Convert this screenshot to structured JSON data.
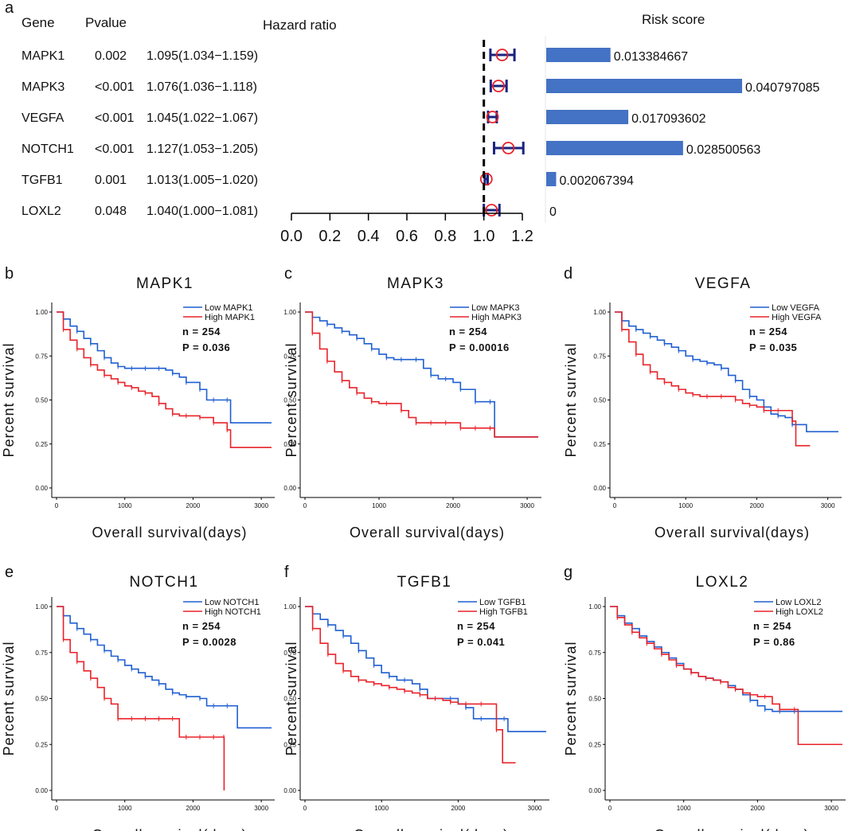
{
  "forest": {
    "panel_letter": "a",
    "headers": {
      "gene": "Gene",
      "pvalue": "Pvalue",
      "hazard": "Hazard ratio",
      "risk": "Risk score"
    },
    "rows": [
      {
        "gene": "MAPK1",
        "pvalue": "0.002",
        "hr_text": "1.095(1.034−1.159)",
        "hr": 1.095,
        "lo": 1.034,
        "hi": 1.159,
        "risk": 0.013384667,
        "risk_text": "0.013384667"
      },
      {
        "gene": "MAPK3",
        "pvalue": "<0.001",
        "hr_text": "1.076(1.036−1.118)",
        "hr": 1.076,
        "lo": 1.036,
        "hi": 1.118,
        "risk": 0.040797085,
        "risk_text": "0.040797085"
      },
      {
        "gene": "VEGFA",
        "pvalue": "<0.001",
        "hr_text": "1.045(1.022−1.067)",
        "hr": 1.045,
        "lo": 1.022,
        "hi": 1.067,
        "risk": 0.017093602,
        "risk_text": "0.017093602"
      },
      {
        "gene": "NOTCH1",
        "pvalue": "<0.001",
        "hr_text": "1.127(1.053−1.205)",
        "hr": 1.127,
        "lo": 1.053,
        "hi": 1.205,
        "risk": 0.028500563,
        "risk_text": "0.028500563"
      },
      {
        "gene": "TGFB1",
        "pvalue": "0.001",
        "hr_text": "1.013(1.005−1.020)",
        "hr": 1.013,
        "lo": 1.005,
        "hi": 1.02,
        "risk": 0.002067394,
        "risk_text": "0.002067394"
      },
      {
        "gene": "LOXL2",
        "pvalue": "0.048",
        "hr_text": "1.040(1.000−1.081)",
        "hr": 1.04,
        "lo": 1.0,
        "hi": 1.081,
        "risk": 0,
        "risk_text": "0"
      }
    ],
    "axis": {
      "min": 0.0,
      "max": 1.2,
      "ticks": [
        "0.0",
        "0.2",
        "0.4",
        "0.6",
        "0.8",
        "1.0",
        "1.2"
      ],
      "reference": 1.0
    }
  },
  "km_common": {
    "ylabel": "Percent survival",
    "xlabel": "Overall survival(days)",
    "yticks": [
      "0.00",
      "0.25",
      "0.50",
      "0.75",
      "1.00"
    ],
    "xticks": [
      "0",
      "1000",
      "2000",
      "3000"
    ],
    "colors": {
      "low": "#1f5fd1",
      "high": "#e8232a",
      "ci": "#1a237e",
      "hr_circle": "#e8232a",
      "bar": "#4472c4"
    }
  },
  "chart_data": [
    {
      "type": "forest",
      "title": "Hazard ratio",
      "categories": [
        "MAPK1",
        "MAPK3",
        "VEGFA",
        "NOTCH1",
        "TGFB1",
        "LOXL2"
      ],
      "values": [
        1.095,
        1.076,
        1.045,
        1.127,
        1.013,
        1.04
      ],
      "lower": [
        1.034,
        1.036,
        1.022,
        1.053,
        1.005,
        1.0
      ],
      "upper": [
        1.159,
        1.118,
        1.067,
        1.205,
        1.02,
        1.081
      ],
      "xlim": [
        0.0,
        1.2
      ]
    },
    {
      "type": "bar",
      "title": "Risk score",
      "categories": [
        "MAPK1",
        "MAPK3",
        "VEGFA",
        "NOTCH1",
        "TGFB1",
        "LOXL2"
      ],
      "values": [
        0.013384667,
        0.040797085,
        0.017093602,
        0.028500563,
        0.002067394,
        0
      ]
    },
    {
      "type": "line",
      "panel": "b",
      "title": "MAPK1",
      "legend": [
        "Low MAPK1",
        "High MAPK1"
      ],
      "n": "n = 254",
      "p": "P = 0.036",
      "xlim": [
        0,
        3150
      ],
      "ylim": [
        0,
        1
      ],
      "series": [
        {
          "name": "Low MAPK1",
          "x": [
            0,
            100,
            200,
            300,
            400,
            500,
            600,
            700,
            800,
            900,
            1000,
            1100,
            1200,
            1300,
            1400,
            1500,
            1600,
            1700,
            1800,
            1900,
            2000,
            2100,
            2200,
            2300,
            2400,
            2500,
            2550,
            3150
          ],
          "y": [
            1.0,
            0.96,
            0.92,
            0.89,
            0.85,
            0.82,
            0.78,
            0.74,
            0.71,
            0.69,
            0.68,
            0.68,
            0.68,
            0.68,
            0.68,
            0.68,
            0.67,
            0.65,
            0.63,
            0.6,
            0.6,
            0.56,
            0.5,
            0.5,
            0.5,
            0.5,
            0.37,
            0.37
          ]
        },
        {
          "name": "High MAPK1",
          "x": [
            0,
            100,
            200,
            300,
            400,
            500,
            600,
            700,
            800,
            900,
            1000,
            1100,
            1200,
            1300,
            1400,
            1500,
            1600,
            1700,
            1800,
            1900,
            2000,
            2100,
            2200,
            2300,
            2400,
            2500,
            2550,
            3150
          ],
          "y": [
            1.0,
            0.9,
            0.84,
            0.79,
            0.74,
            0.7,
            0.67,
            0.64,
            0.62,
            0.6,
            0.58,
            0.57,
            0.55,
            0.54,
            0.52,
            0.48,
            0.45,
            0.42,
            0.41,
            0.41,
            0.41,
            0.4,
            0.4,
            0.37,
            0.37,
            0.33,
            0.23,
            0.23
          ]
        }
      ]
    },
    {
      "type": "line",
      "panel": "c",
      "title": "MAPK3",
      "legend": [
        "Low MAPK3",
        "High MAPK3"
      ],
      "n": "n = 254",
      "p": "P = 0.00016",
      "xlim": [
        0,
        3150
      ],
      "ylim": [
        0,
        1
      ],
      "series": [
        {
          "name": "Low MAPK3",
          "x": [
            0,
            100,
            200,
            300,
            400,
            500,
            600,
            700,
            800,
            900,
            1000,
            1100,
            1200,
            1300,
            1400,
            1500,
            1600,
            1700,
            1800,
            1900,
            2000,
            2100,
            2200,
            2300,
            2400,
            2500,
            2560,
            3150
          ],
          "y": [
            1.0,
            0.97,
            0.95,
            0.93,
            0.91,
            0.89,
            0.87,
            0.85,
            0.82,
            0.79,
            0.76,
            0.74,
            0.73,
            0.73,
            0.73,
            0.73,
            0.68,
            0.64,
            0.62,
            0.62,
            0.6,
            0.56,
            0.56,
            0.49,
            0.49,
            0.49,
            0.29,
            0.29
          ]
        },
        {
          "name": "High MAPK3",
          "x": [
            0,
            100,
            200,
            300,
            400,
            500,
            600,
            700,
            800,
            900,
            1000,
            1100,
            1200,
            1300,
            1400,
            1500,
            1600,
            1700,
            1800,
            1900,
            2000,
            2100,
            2200,
            2300,
            2400,
            2500,
            2560,
            3150
          ],
          "y": [
            1.0,
            0.88,
            0.79,
            0.72,
            0.66,
            0.61,
            0.57,
            0.54,
            0.51,
            0.49,
            0.48,
            0.48,
            0.48,
            0.44,
            0.4,
            0.37,
            0.37,
            0.37,
            0.37,
            0.37,
            0.37,
            0.34,
            0.34,
            0.34,
            0.34,
            0.34,
            0.29,
            0.29
          ]
        }
      ]
    },
    {
      "type": "line",
      "panel": "d",
      "title": "VEGFA",
      "legend": [
        "Low VEGFA",
        "High VEGFA"
      ],
      "n": "n = 254",
      "p": "P = 0.035",
      "xlim": [
        0,
        3150
      ],
      "ylim": [
        0,
        1
      ],
      "series": [
        {
          "name": "Low VEGFA",
          "x": [
            0,
            100,
            200,
            300,
            400,
            500,
            600,
            700,
            800,
            900,
            1000,
            1100,
            1200,
            1300,
            1400,
            1500,
            1600,
            1700,
            1800,
            1900,
            2000,
            2100,
            2200,
            2300,
            2400,
            2500,
            2700,
            3150
          ],
          "y": [
            1.0,
            0.95,
            0.92,
            0.9,
            0.88,
            0.86,
            0.84,
            0.82,
            0.8,
            0.78,
            0.75,
            0.73,
            0.72,
            0.71,
            0.7,
            0.68,
            0.64,
            0.61,
            0.56,
            0.52,
            0.5,
            0.46,
            0.42,
            0.41,
            0.4,
            0.36,
            0.32,
            0.32
          ]
        },
        {
          "name": "High VEGFA",
          "x": [
            0,
            100,
            200,
            300,
            400,
            500,
            600,
            700,
            800,
            900,
            1000,
            1100,
            1200,
            1300,
            1400,
            1500,
            1600,
            1700,
            1800,
            1900,
            2000,
            2100,
            2200,
            2300,
            2400,
            2500,
            2550,
            2750
          ],
          "y": [
            1.0,
            0.9,
            0.83,
            0.76,
            0.7,
            0.66,
            0.62,
            0.6,
            0.58,
            0.56,
            0.54,
            0.53,
            0.52,
            0.52,
            0.52,
            0.52,
            0.52,
            0.5,
            0.48,
            0.47,
            0.46,
            0.44,
            0.44,
            0.44,
            0.44,
            0.38,
            0.24,
            0.24
          ]
        }
      ]
    },
    {
      "type": "line",
      "panel": "e",
      "title": "NOTCH1",
      "legend": [
        "Low NOTCH1",
        "High NOTCH1"
      ],
      "n": "n = 254",
      "p": "P = 0.0028",
      "xlim": [
        0,
        3150
      ],
      "ylim": [
        0,
        1
      ],
      "series": [
        {
          "name": "Low NOTCH1",
          "x": [
            0,
            100,
            200,
            300,
            400,
            500,
            600,
            700,
            800,
            900,
            1000,
            1100,
            1200,
            1300,
            1400,
            1500,
            1600,
            1700,
            1800,
            1900,
            2000,
            2100,
            2200,
            2300,
            2400,
            2500,
            2650,
            3150
          ],
          "y": [
            1.0,
            0.95,
            0.91,
            0.88,
            0.85,
            0.82,
            0.79,
            0.76,
            0.73,
            0.71,
            0.68,
            0.66,
            0.64,
            0.62,
            0.6,
            0.58,
            0.55,
            0.53,
            0.52,
            0.51,
            0.51,
            0.5,
            0.46,
            0.46,
            0.46,
            0.46,
            0.34,
            0.34
          ]
        },
        {
          "name": "High NOTCH1",
          "x": [
            0,
            100,
            200,
            300,
            400,
            500,
            600,
            700,
            800,
            900,
            1000,
            1100,
            1200,
            1300,
            1400,
            1500,
            1600,
            1700,
            1800,
            1900,
            2000,
            2100,
            2200,
            2300,
            2400,
            2450,
            2455
          ],
          "y": [
            1.0,
            0.82,
            0.75,
            0.7,
            0.65,
            0.61,
            0.56,
            0.5,
            0.47,
            0.39,
            0.39,
            0.39,
            0.39,
            0.39,
            0.39,
            0.39,
            0.39,
            0.39,
            0.29,
            0.29,
            0.29,
            0.29,
            0.29,
            0.29,
            0.29,
            0.29,
            0.0
          ]
        }
      ]
    },
    {
      "type": "line",
      "panel": "f",
      "title": "TGFB1",
      "legend": [
        "Low TGFB1",
        "High TGFB1"
      ],
      "n": "n = 254",
      "p": "P = 0.041",
      "xlim": [
        0,
        3150
      ],
      "ylim": [
        0,
        1
      ],
      "series": [
        {
          "name": "Low TGFB1",
          "x": [
            0,
            100,
            200,
            300,
            400,
            500,
            600,
            700,
            800,
            900,
            1000,
            1100,
            1200,
            1300,
            1400,
            1500,
            1600,
            1700,
            1800,
            1900,
            2000,
            2100,
            2200,
            2300,
            2400,
            2600,
            2650,
            3150
          ],
          "y": [
            1.0,
            0.96,
            0.93,
            0.9,
            0.87,
            0.84,
            0.8,
            0.76,
            0.72,
            0.68,
            0.64,
            0.62,
            0.6,
            0.6,
            0.58,
            0.55,
            0.5,
            0.5,
            0.5,
            0.5,
            0.47,
            0.45,
            0.39,
            0.39,
            0.39,
            0.39,
            0.32,
            0.32
          ]
        },
        {
          "name": "High TGFB1",
          "x": [
            0,
            100,
            200,
            300,
            400,
            500,
            600,
            700,
            800,
            900,
            1000,
            1100,
            1200,
            1300,
            1400,
            1500,
            1600,
            1700,
            1800,
            1900,
            2000,
            2100,
            2200,
            2300,
            2400,
            2500,
            2580,
            2750
          ],
          "y": [
            1.0,
            0.88,
            0.8,
            0.74,
            0.69,
            0.65,
            0.62,
            0.6,
            0.59,
            0.58,
            0.57,
            0.56,
            0.55,
            0.54,
            0.53,
            0.52,
            0.5,
            0.5,
            0.49,
            0.48,
            0.47,
            0.47,
            0.47,
            0.47,
            0.47,
            0.33,
            0.15,
            0.15
          ]
        }
      ]
    },
    {
      "type": "line",
      "panel": "g",
      "title": "LOXL2",
      "legend": [
        "Low LOXL2",
        "High LOXL2"
      ],
      "n": "n = 254",
      "p": "P = 0.86",
      "xlim": [
        0,
        3150
      ],
      "ylim": [
        0,
        1
      ],
      "series": [
        {
          "name": "Low LOXL2",
          "x": [
            0,
            100,
            200,
            300,
            400,
            500,
            600,
            700,
            800,
            900,
            1000,
            1100,
            1200,
            1300,
            1400,
            1500,
            1600,
            1700,
            1800,
            1900,
            2000,
            2100,
            2200,
            2300,
            2400,
            2500,
            2700,
            3150
          ],
          "y": [
            1.0,
            0.95,
            0.91,
            0.88,
            0.84,
            0.81,
            0.78,
            0.75,
            0.72,
            0.69,
            0.66,
            0.64,
            0.62,
            0.61,
            0.6,
            0.59,
            0.57,
            0.55,
            0.52,
            0.49,
            0.46,
            0.44,
            0.43,
            0.43,
            0.43,
            0.43,
            0.43,
            0.43
          ]
        },
        {
          "name": "High LOXL2",
          "x": [
            0,
            100,
            200,
            300,
            400,
            500,
            600,
            700,
            800,
            900,
            1000,
            1100,
            1200,
            1300,
            1400,
            1500,
            1600,
            1700,
            1800,
            1900,
            2000,
            2100,
            2200,
            2300,
            2400,
            2500,
            2550,
            3150
          ],
          "y": [
            1.0,
            0.94,
            0.9,
            0.86,
            0.83,
            0.8,
            0.77,
            0.74,
            0.71,
            0.68,
            0.66,
            0.64,
            0.62,
            0.61,
            0.6,
            0.59,
            0.56,
            0.55,
            0.53,
            0.52,
            0.51,
            0.51,
            0.47,
            0.44,
            0.44,
            0.44,
            0.25,
            0.25
          ]
        }
      ]
    }
  ]
}
